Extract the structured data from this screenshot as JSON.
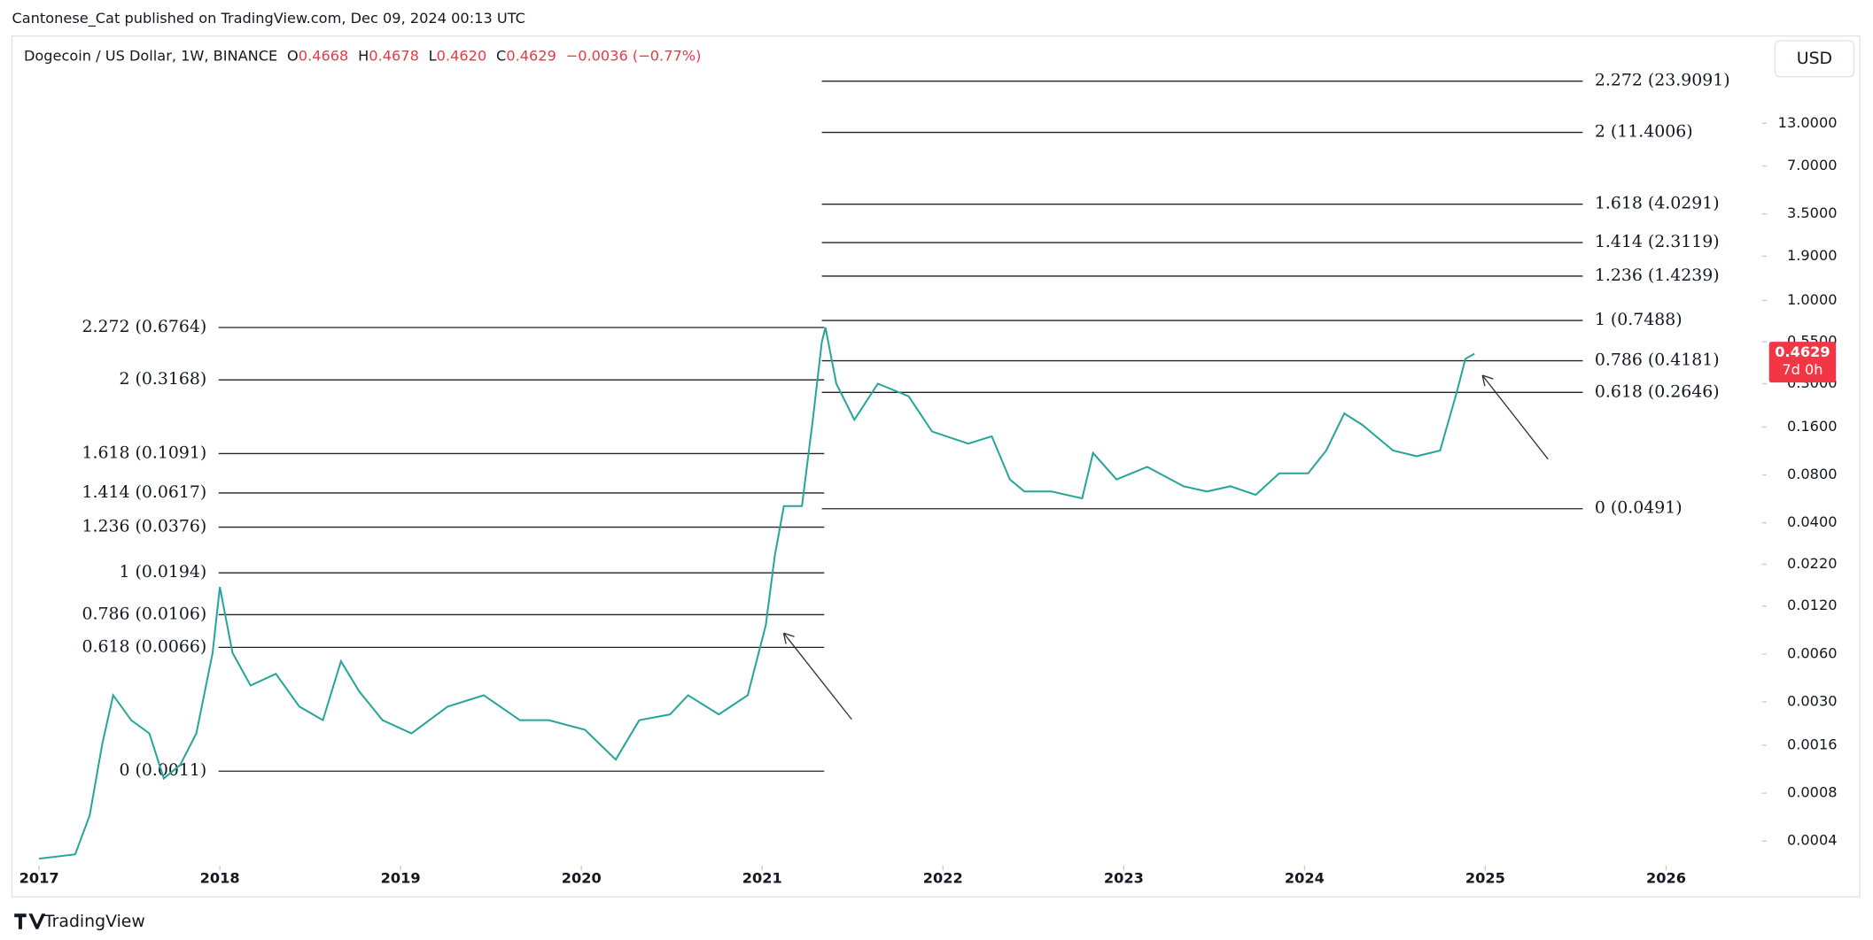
{
  "header": {
    "byline": "Cantonese_Cat published on TradingView.com, Dec 09, 2024 00:13 UTC",
    "symbol": "Dogecoin / US Dollar, 1W, BINANCE",
    "ohlc": [
      {
        "key": "O",
        "value": "0.4668"
      },
      {
        "key": "H",
        "value": "0.4678"
      },
      {
        "key": "L",
        "value": "0.4620"
      },
      {
        "key": "C",
        "value": "0.4629"
      }
    ],
    "change": "−0.0036 (−0.77%)",
    "currency": "USD"
  },
  "chart_data": {
    "type": "line",
    "log_scale": true,
    "color": "#26a69a",
    "x": [
      2017.0,
      2017.2,
      2017.28,
      2017.35,
      2017.41,
      2017.51,
      2017.61,
      2017.69,
      2017.78,
      2017.87,
      2017.96,
      2018.0,
      2018.07,
      2018.17,
      2018.31,
      2018.44,
      2018.57,
      2018.67,
      2018.77,
      2018.9,
      2019.06,
      2019.26,
      2019.46,
      2019.66,
      2019.82,
      2020.02,
      2020.19,
      2020.32,
      2020.49,
      2020.59,
      2020.76,
      2020.92,
      2021.02,
      2021.07,
      2021.12,
      2021.22,
      2021.28,
      2021.33,
      2021.35,
      2021.41,
      2021.51,
      2021.64,
      2021.81,
      2021.94,
      2022.14,
      2022.27,
      2022.37,
      2022.45,
      2022.6,
      2022.77,
      2022.83,
      2022.96,
      2023.13,
      2023.33,
      2023.46,
      2023.59,
      2023.73,
      2023.86,
      2024.02,
      2024.12,
      2024.22,
      2024.32,
      2024.49,
      2024.62,
      2024.75,
      2024.84,
      2024.89,
      2024.94
    ],
    "values": [
      0.00031,
      0.00033,
      0.00058,
      0.00164,
      0.0033,
      0.0023,
      0.0019,
      0.00099,
      0.0012,
      0.0019,
      0.0061,
      0.0158,
      0.0061,
      0.0038,
      0.0045,
      0.0028,
      0.0023,
      0.0054,
      0.0035,
      0.0023,
      0.0019,
      0.0028,
      0.0033,
      0.0023,
      0.0023,
      0.002,
      0.0013,
      0.0023,
      0.0025,
      0.0033,
      0.0025,
      0.0033,
      0.0091,
      0.025,
      0.051,
      0.051,
      0.178,
      0.55,
      0.6764,
      0.3,
      0.178,
      0.3,
      0.25,
      0.15,
      0.126,
      0.14,
      0.075,
      0.063,
      0.063,
      0.057,
      0.11,
      0.075,
      0.09,
      0.068,
      0.063,
      0.068,
      0.06,
      0.082,
      0.082,
      0.114,
      0.195,
      0.165,
      0.114,
      0.105,
      0.114,
      0.26,
      0.43,
      0.4629
    ],
    "xlim": [
      2016.85,
      2026.53
    ],
    "xticks": [
      2017,
      2018,
      2019,
      2020,
      2021,
      2022,
      2023,
      2024,
      2025,
      2026
    ],
    "ylim": [
      0.00029,
      46
    ],
    "yticks": [
      {
        "value": 13,
        "label": "13.0000"
      },
      {
        "value": 7,
        "label": "7.0000"
      },
      {
        "value": 3.5,
        "label": "3.5000"
      },
      {
        "value": 1.9,
        "label": "1.9000"
      },
      {
        "value": 1,
        "label": "1.0000"
      },
      {
        "value": 0.55,
        "label": "0.5500"
      },
      {
        "value": 0.3,
        "label": "0.3000"
      },
      {
        "value": 0.16,
        "label": "0.1600"
      },
      {
        "value": 0.08,
        "label": "0.0800"
      },
      {
        "value": 0.04,
        "label": "0.0400"
      },
      {
        "value": 0.022,
        "label": "0.0220"
      },
      {
        "value": 0.012,
        "label": "0.0120"
      },
      {
        "value": 0.006,
        "label": "0.0060"
      },
      {
        "value": 0.003,
        "label": "0.0030"
      },
      {
        "value": 0.0016,
        "label": "0.0016"
      },
      {
        "value": 0.0008,
        "label": "0.0008"
      },
      {
        "value": 0.0004,
        "label": "0.0004"
      }
    ],
    "last_price": {
      "value": 0.4629,
      "label": "0.4629",
      "countdown": "7d 0h"
    },
    "fib_left": [
      {
        "label": "2.272 (0.6764)",
        "price": 0.6764
      },
      {
        "label": "2 (0.3168)",
        "price": 0.3168
      },
      {
        "label": "1.618 (0.1091)",
        "price": 0.1091
      },
      {
        "label": "1.414 (0.0617)",
        "price": 0.0617
      },
      {
        "label": "1.236 (0.0376)",
        "price": 0.0376
      },
      {
        "label": "1 (0.0194)",
        "price": 0.0194
      },
      {
        "label": "0.786 (0.0106)",
        "price": 0.0106
      },
      {
        "label": "0.618 (0.0066)",
        "price": 0.0066
      },
      {
        "label": "0 (0.0011)",
        "price": 0.0011
      }
    ],
    "fib_right": [
      {
        "label": "2.272 (23.9091)",
        "price": 23.9091
      },
      {
        "label": "2 (11.4006)",
        "price": 11.4006
      },
      {
        "label": "1.618 (4.0291)",
        "price": 4.0291
      },
      {
        "label": "1.414 (2.3119)",
        "price": 2.3119
      },
      {
        "label": "1.236 (1.4239)",
        "price": 1.4239
      },
      {
        "label": "1 (0.7488)",
        "price": 0.7488
      },
      {
        "label": "0.786 (0.4181)",
        "price": 0.4181
      },
      {
        "label": "0.618 (0.2646)",
        "price": 0.2646
      },
      {
        "label": "0 (0.0491)",
        "price": 0.0491
      }
    ]
  },
  "footer": {
    "brand": "TradingView"
  }
}
